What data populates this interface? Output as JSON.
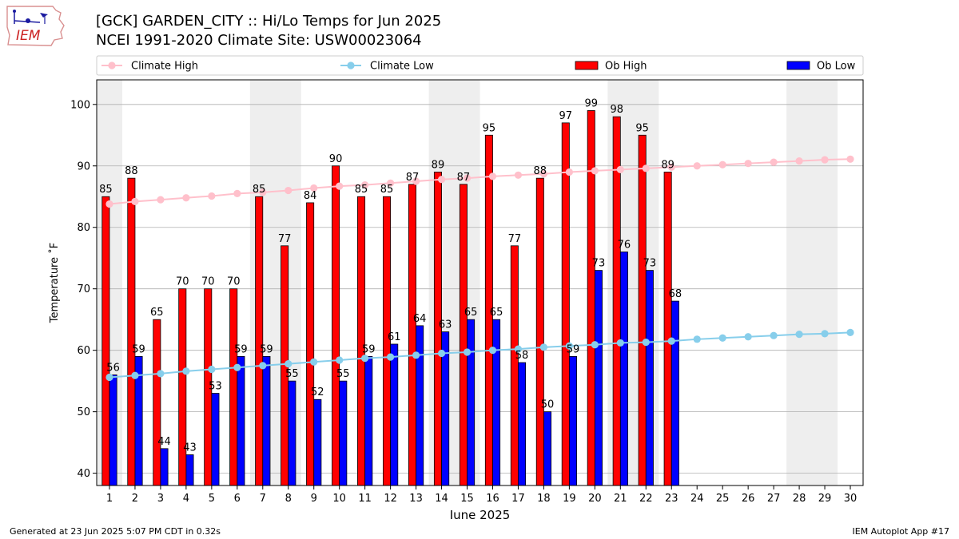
{
  "header": {
    "title_line1": "[GCK] GARDEN_CITY :: Hi/Lo Temps for Jun 2025",
    "title_line2": "NCEI 1991-2020 Climate Site: USW00023064",
    "logo_text": "IEM"
  },
  "footer": {
    "generated": "Generated at 23 Jun 2025 5:07 PM CDT in 0.32s",
    "app": "IEM Autoplot App #17"
  },
  "colors": {
    "climate_high": "#ffc0cb",
    "climate_low": "#87ceeb",
    "ob_high": "#ff0000",
    "ob_low": "#0000ff",
    "weekend_shade": "#eeeeee",
    "grid": "#b0b0b0"
  },
  "chart_data": {
    "type": "bar",
    "xlabel": "June 2025",
    "ylabel": "Temperature ˚F",
    "ylim": [
      38,
      104
    ],
    "yticks": [
      40,
      50,
      60,
      70,
      80,
      90,
      100
    ],
    "grid": "horizontal",
    "legend_position": "top",
    "categories": [
      1,
      2,
      3,
      4,
      5,
      6,
      7,
      8,
      9,
      10,
      11,
      12,
      13,
      14,
      15,
      16,
      17,
      18,
      19,
      20,
      21,
      22,
      23,
      24,
      25,
      26,
      27,
      28,
      29,
      30
    ],
    "shaded_days": [
      [
        1,
        1
      ],
      [
        7,
        8
      ],
      [
        14,
        15
      ],
      [
        21,
        22
      ],
      [
        28,
        29
      ]
    ],
    "series": [
      {
        "name": "Climate High",
        "type": "line",
        "values": [
          83.8,
          84.2,
          84.5,
          84.8,
          85.1,
          85.5,
          85.7,
          86.0,
          86.4,
          86.7,
          86.9,
          87.2,
          87.5,
          87.8,
          88.0,
          88.3,
          88.5,
          88.7,
          89.0,
          89.2,
          89.4,
          89.6,
          89.8,
          90.0,
          90.2,
          90.4,
          90.6,
          90.8,
          91.0,
          91.1
        ]
      },
      {
        "name": "Climate Low",
        "type": "line",
        "values": [
          55.6,
          55.9,
          56.2,
          56.6,
          56.9,
          57.2,
          57.5,
          57.8,
          58.1,
          58.4,
          58.7,
          58.9,
          59.2,
          59.5,
          59.7,
          60.0,
          60.2,
          60.5,
          60.7,
          60.9,
          61.2,
          61.3,
          61.5,
          61.8,
          62.0,
          62.2,
          62.4,
          62.6,
          62.7,
          62.9
        ]
      },
      {
        "name": "Ob High",
        "type": "bar",
        "values": [
          85,
          88,
          65,
          70,
          70,
          70,
          85,
          77,
          84,
          90,
          85,
          85,
          87,
          89,
          87,
          95,
          77,
          88,
          97,
          99,
          98,
          95,
          89,
          null,
          null,
          null,
          null,
          null,
          null,
          null
        ]
      },
      {
        "name": "Ob Low",
        "type": "bar",
        "values": [
          56,
          59,
          44,
          43,
          53,
          59,
          59,
          55,
          52,
          55,
          59,
          61,
          64,
          63,
          65,
          65,
          58,
          50,
          59,
          73,
          76,
          73,
          68,
          null,
          null,
          null,
          null,
          null,
          null,
          null
        ]
      }
    ]
  }
}
